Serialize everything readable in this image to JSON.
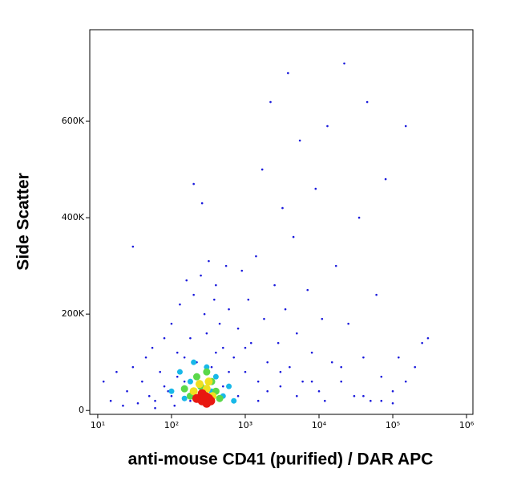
{
  "chart_data": {
    "type": "scatter",
    "xlabel": "anti-mouse CD41 (purified) / DAR APC",
    "ylabel": "Side Scatter",
    "xscale": "log",
    "xlim": [
      7.8,
      1220000
    ],
    "xticks": [
      {
        "value": 10,
        "label": "10¹"
      },
      {
        "value": 100,
        "label": "10²"
      },
      {
        "value": 1000,
        "label": "10³"
      },
      {
        "value": 10000,
        "label": "10⁴"
      },
      {
        "value": 100000,
        "label": "10⁵"
      },
      {
        "value": 1000000,
        "label": "10⁶"
      }
    ],
    "ylim": [
      -8000,
      790000
    ],
    "yticks": [
      0,
      {
        "value": 200000,
        "label": "200K"
      },
      {
        "value": 400000,
        "label": "400K"
      },
      {
        "value": 600000,
        "label": "600K"
      }
    ],
    "series": [
      {
        "color": "#1a1adc",
        "x": [
          12,
          15,
          18,
          22,
          25,
          30,
          30,
          35,
          40,
          45,
          50,
          55,
          60,
          70,
          80,
          90,
          100,
          110,
          120,
          130,
          150,
          160,
          180,
          200,
          200,
          220,
          250,
          260,
          280,
          300,
          320,
          350,
          380,
          400,
          450,
          500,
          550,
          600,
          700,
          800,
          900,
          1000,
          1100,
          1200,
          1400,
          1500,
          1700,
          1800,
          2000,
          2200,
          2500,
          2800,
          3000,
          3200,
          3500,
          3800,
          4000,
          4500,
          5000,
          5500,
          6000,
          7000,
          8000,
          9000,
          10000,
          11000,
          13000,
          15000,
          17000,
          20000,
          22000,
          25000,
          30000,
          35000,
          40000,
          45000,
          50000,
          60000,
          70000,
          80000,
          100000,
          120000,
          150000,
          150000,
          200000,
          250000,
          300000,
          60,
          80,
          100,
          120,
          150,
          180,
          250,
          300,
          400,
          500,
          600,
          800,
          1000,
          1500,
          2000,
          3000,
          5000,
          8000,
          12000,
          20000,
          40000,
          70000,
          100000
        ],
        "y": [
          60000,
          20000,
          80000,
          10000,
          40000,
          90000,
          340000,
          15000,
          60000,
          110000,
          30000,
          130000,
          5000,
          80000,
          150000,
          40000,
          180000,
          10000,
          120000,
          220000,
          60000,
          270000,
          150000,
          240000,
          470000,
          100000,
          280000,
          430000,
          200000,
          160000,
          310000,
          90000,
          230000,
          260000,
          180000,
          130000,
          300000,
          210000,
          110000,
          170000,
          290000,
          80000,
          230000,
          140000,
          320000,
          60000,
          500000,
          190000,
          100000,
          640000,
          260000,
          140000,
          50000,
          420000,
          210000,
          700000,
          90000,
          360000,
          160000,
          560000,
          60000,
          250000,
          120000,
          460000,
          40000,
          190000,
          590000,
          100000,
          300000,
          60000,
          720000,
          180000,
          30000,
          400000,
          110000,
          640000,
          20000,
          240000,
          70000,
          480000,
          40000,
          110000,
          590000,
          60000,
          90000,
          140000,
          150000,
          20000,
          50000,
          30000,
          70000,
          110000,
          20000,
          40000,
          60000,
          120000,
          50000,
          80000,
          30000,
          130000,
          20000,
          40000,
          80000,
          30000,
          60000,
          20000,
          90000,
          30000,
          20000,
          15000
        ]
      },
      {
        "color": "#18b8e8",
        "x": [
          100,
          130,
          150,
          180,
          200,
          250,
          300,
          350,
          400,
          500,
          600,
          700
        ],
        "y": [
          40000,
          80000,
          25000,
          60000,
          100000,
          20000,
          90000,
          40000,
          70000,
          30000,
          50000,
          20000
        ]
      },
      {
        "color": "#5ad84a",
        "x": [
          150,
          180,
          220,
          250,
          300,
          350,
          400,
          450
        ],
        "y": [
          45000,
          30000,
          70000,
          50000,
          80000,
          60000,
          40000,
          25000
        ]
      },
      {
        "color": "#f0e020",
        "x": [
          200,
          240,
          280,
          320,
          360,
          300
        ],
        "y": [
          40000,
          55000,
          35000,
          60000,
          30000,
          45000
        ]
      },
      {
        "color": "#e81810",
        "x": [
          220,
          260,
          280,
          300,
          320,
          340,
          260,
          300
        ],
        "y": [
          25000,
          20000,
          30000,
          15000,
          25000,
          20000,
          35000,
          28000
        ]
      }
    ]
  }
}
